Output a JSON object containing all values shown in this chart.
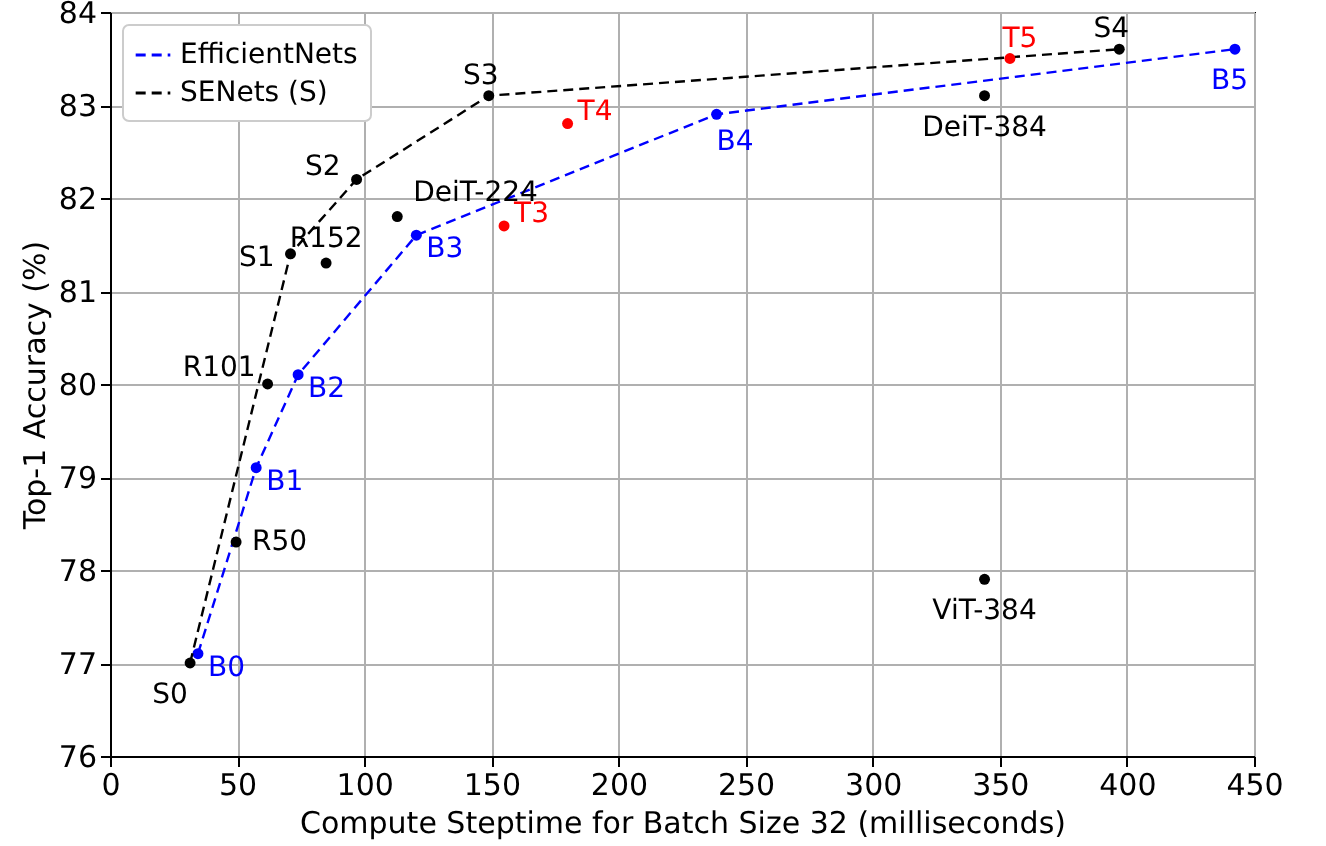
{
  "chart_data": {
    "type": "line",
    "xlabel": "Compute Steptime for Batch Size 32 (milliseconds)",
    "ylabel": "Top-1 Accuracy (%)",
    "xlim": [
      0,
      450
    ],
    "xticks": [
      0,
      50,
      100,
      150,
      200,
      250,
      300,
      350,
      400,
      450
    ],
    "ylim": [
      76,
      84
    ],
    "yticks": [
      76,
      77,
      78,
      79,
      80,
      81,
      82,
      83,
      84
    ],
    "grid": true,
    "legend": "top left",
    "marker": "circle",
    "series": [
      {
        "name": "EfficientNets",
        "line_style": "dashed",
        "color": "#0000ff",
        "x": [
          34.6,
          57.5,
          74,
          120.5,
          238.6,
          442.5
        ],
        "values": [
          77.1,
          79.1,
          80.1,
          81.6,
          82.9,
          83.6
        ]
      },
      {
        "name": "SENets (S)",
        "line_style": "dashed",
        "color": "#000000",
        "x": [
          31.5,
          71,
          97,
          149,
          397
        ],
        "values": [
          77.0,
          81.4,
          82.2,
          83.1,
          83.6
        ]
      },
      {
        "type": "scatter",
        "color": "#000000",
        "x": [
          49.6,
          62,
          85,
          113,
          344,
          344
        ],
        "values": [
          78.3,
          80.0,
          81.3,
          81.8,
          83.1,
          77.9
        ]
      },
      {
        "type": "scatter",
        "color": "#ff0000",
        "x": [
          155,
          180,
          354
        ],
        "values": [
          81.7,
          82.8,
          83.5
        ]
      }
    ],
    "annotations": [
      {
        "text": "B0",
        "x": 34.6,
        "y": 77.1
      },
      {
        "text": "B1",
        "x": 57.5,
        "y": 79.1
      },
      {
        "text": "B2",
        "x": 74,
        "y": 80.1
      },
      {
        "text": "B3",
        "x": 120.5,
        "y": 81.6
      },
      {
        "text": "B4",
        "x": 238.6,
        "y": 82.9
      },
      {
        "text": "B5",
        "x": 442.5,
        "y": 83.6
      },
      {
        "text": "S0",
        "x": 31.5,
        "y": 77.0
      },
      {
        "text": "S1",
        "x": 71,
        "y": 81.4
      },
      {
        "text": "S2",
        "x": 97,
        "y": 82.2
      },
      {
        "text": "S3",
        "x": 149,
        "y": 83.1
      },
      {
        "text": "S4",
        "x": 397,
        "y": 83.6
      },
      {
        "text": "R50",
        "x": 49.6,
        "y": 78.3
      },
      {
        "text": "R101",
        "x": 62,
        "y": 80.0
      },
      {
        "text": "R152",
        "x": 85,
        "y": 81.3
      },
      {
        "text": "DeiT-224",
        "x": 113,
        "y": 81.8
      },
      {
        "text": "DeiT-384",
        "x": 344,
        "y": 83.1
      },
      {
        "text": "ViT-384",
        "x": 344,
        "y": 77.9
      },
      {
        "text": "T3",
        "x": 155,
        "y": 81.7
      },
      {
        "text": "T4",
        "x": 180,
        "y": 82.8
      },
      {
        "text": "T5",
        "x": 354,
        "y": 83.5
      }
    ]
  }
}
